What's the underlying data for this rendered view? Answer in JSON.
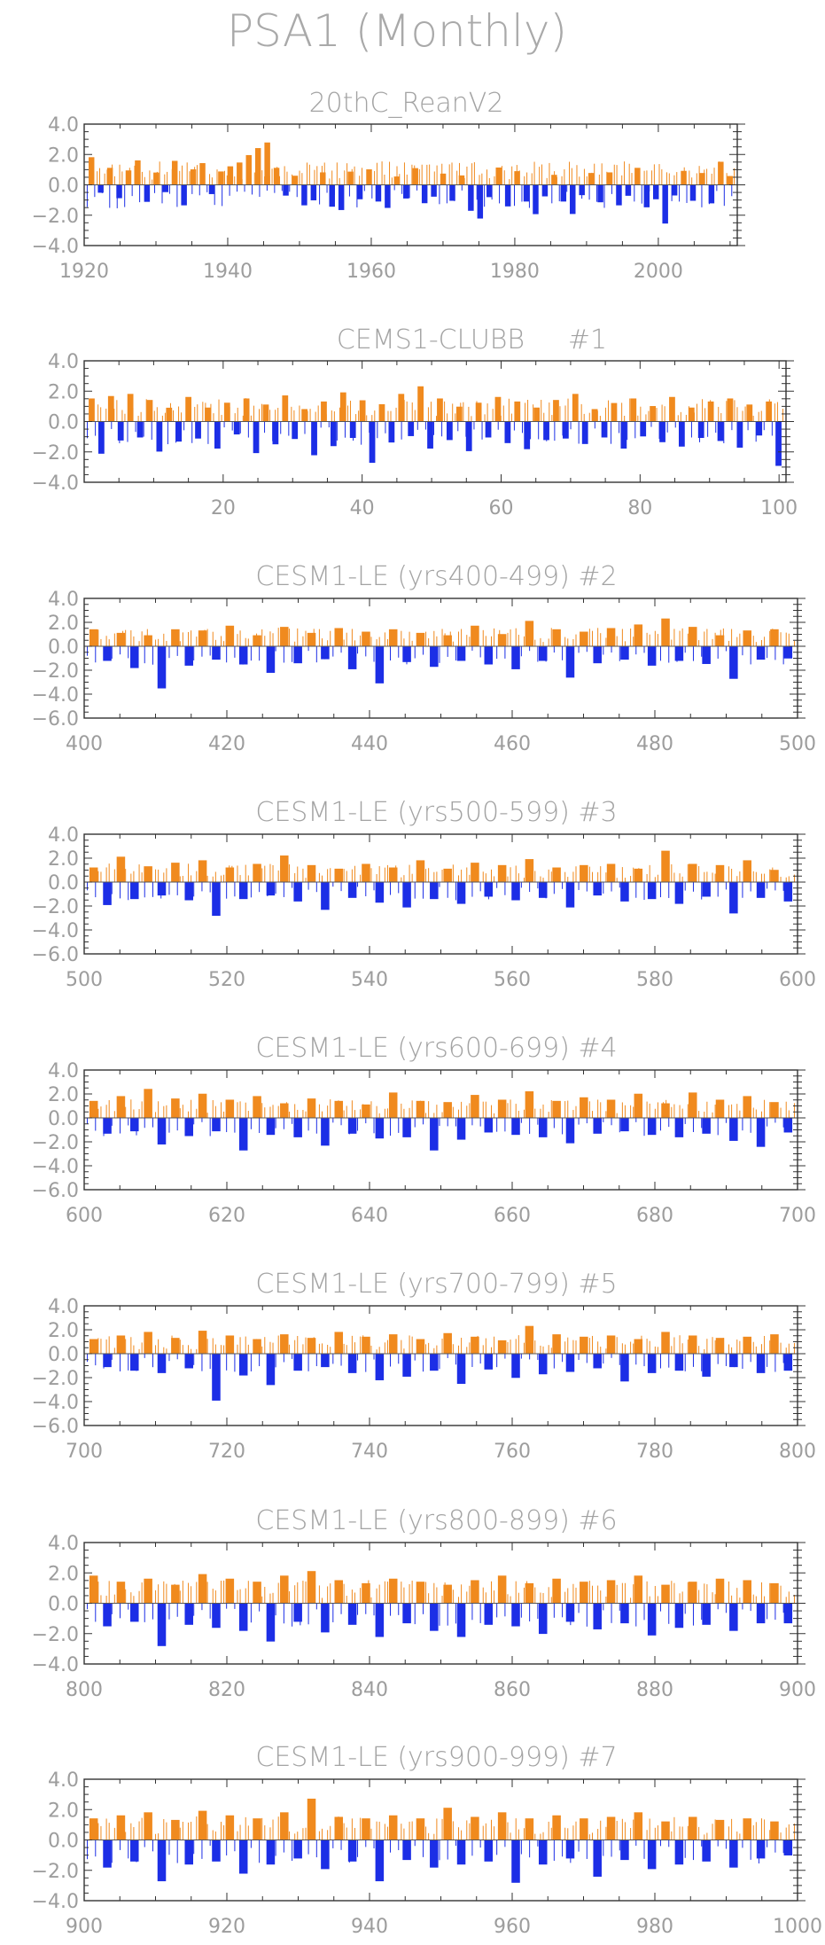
{
  "figure_title": "PSA1 (Monthly)",
  "colors": {
    "positive": "#f08a1e",
    "negative": "#1c2ee6",
    "frame": "#333333",
    "text": "#a3a3a3"
  },
  "chart_data": [
    {
      "type": "bar",
      "title": "20thC_ReanV2",
      "member": "",
      "xlim": [
        1920,
        2011
      ],
      "ylim": [
        -4.0,
        4.0
      ],
      "xticks": [
        "1920",
        "1940",
        "1960",
        "1980",
        "2000"
      ],
      "yticks": [
        "4.0",
        "2.0",
        "0.0",
        "−2.0",
        "−4.0"
      ],
      "series": [
        {
          "name": "",
          "values": [
            1.82,
            -0.52,
            1.12,
            -0.88,
            0.95,
            1.61,
            -1.12,
            0.81,
            -0.48,
            1.58,
            -1.35,
            1.02,
            1.43,
            -0.61,
            0.88,
            1.22,
            1.47,
            1.96,
            2.42,
            2.79,
            1.12,
            -0.71,
            0.6,
            -1.35,
            -1.02,
            0.82,
            -1.44,
            -1.66,
            0.87,
            -0.95,
            1.02,
            -1.1,
            -1.52,
            0.55,
            -0.9,
            1.1,
            -1.21,
            -0.78,
            0.74,
            -1.05,
            0.62,
            -1.71,
            -2.22,
            -0.81,
            1.14,
            -1.42,
            0.9,
            -1.1,
            -1.93,
            -0.76,
            0.66,
            -1.1,
            -1.92,
            -0.68,
            0.78,
            -1.15,
            0.82,
            -1.35,
            -0.72,
            1.12,
            -1.48,
            -0.95,
            -2.55,
            -0.7,
            0.92,
            -1.05,
            0.78,
            -1.22,
            1.52,
            0.58
          ]
        }
      ]
    },
    {
      "type": "bar",
      "title": "CEMS1-CLUBB",
      "member": "#1",
      "xlim": [
        0,
        101
      ],
      "ylim": [
        -4.0,
        4.0
      ],
      "xticks": [
        "20",
        "40",
        "60",
        "80",
        "100"
      ],
      "yticks": [
        "4.0",
        "2.0",
        "0.0",
        "−2.0",
        "−4.0"
      ],
      "series": [
        {
          "name": "",
          "values": [
            1.52,
            -2.12,
            1.68,
            -1.25,
            1.82,
            -1.05,
            1.42,
            -1.98,
            0.91,
            -1.32,
            1.62,
            -1.12,
            0.92,
            -1.78,
            1.24,
            -0.85,
            1.52,
            -2.08,
            1.12,
            -1.5,
            1.72,
            -1.15,
            0.82,
            -2.22,
            1.32,
            -1.62,
            1.92,
            -1.08,
            1.4,
            -2.72,
            1.14,
            -1.38,
            1.82,
            -0.96,
            2.32,
            -1.78,
            1.52,
            -1.22,
            0.98,
            -1.95,
            1.24,
            -1.05,
            1.62,
            -1.42,
            1.32,
            -1.82,
            0.92,
            -1.22,
            1.42,
            -1.12,
            1.82,
            -1.48,
            0.82,
            -1.05,
            1.22,
            -1.78,
            1.52,
            -0.98,
            1.02,
            -1.36,
            1.62,
            -1.65,
            0.92,
            -1.08,
            1.32,
            -1.28,
            1.52,
            -1.72,
            1.12,
            -0.92,
            1.32,
            -2.92
          ]
        }
      ]
    },
    {
      "type": "bar",
      "title": "CESM1-LE (yrs400-499)",
      "member": "#2",
      "xlim": [
        400,
        500
      ],
      "ylim": [
        -6.0,
        4.0
      ],
      "xticks": [
        "400",
        "420",
        "440",
        "460",
        "480",
        "500"
      ],
      "yticks": [
        "4.0",
        "2.0",
        "0.0",
        "−2.0",
        "−4.0",
        "−6.0"
      ],
      "series": [
        {
          "name": "",
          "values": [
            1.42,
            -1.22,
            1.12,
            -1.82,
            0.92,
            -3.52,
            1.42,
            -1.62,
            1.32,
            -1.12,
            1.72,
            -1.52,
            0.92,
            -2.22,
            1.62,
            -1.42,
            1.12,
            -1.08,
            1.52,
            -1.92,
            1.22,
            -3.1,
            1.42,
            -1.32,
            1.12,
            -1.72,
            0.92,
            -1.22,
            1.72,
            -1.52,
            1.02,
            -1.92,
            2.12,
            -1.22,
            1.42,
            -2.62,
            1.22,
            -1.42,
            1.52,
            -1.12,
            1.82,
            -1.62,
            2.32,
            -1.22,
            1.62,
            -1.48,
            0.92,
            -2.72,
            1.32,
            -1.12,
            1.42,
            -1.02
          ]
        }
      ]
    },
    {
      "type": "bar",
      "title": "CESM1-LE (yrs500-599)",
      "member": "#3",
      "xlim": [
        500,
        600
      ],
      "ylim": [
        -6.0,
        4.0
      ],
      "xticks": [
        "500",
        "520",
        "540",
        "560",
        "580",
        "600"
      ],
      "yticks": [
        "4.0",
        "2.0",
        "0.0",
        "−2.0",
        "−4.0",
        "−6.0"
      ],
      "series": [
        {
          "name": "",
          "values": [
            1.22,
            -1.92,
            2.12,
            -1.42,
            1.32,
            -1.12,
            1.62,
            -1.52,
            1.82,
            -2.82,
            1.22,
            -1.42,
            1.52,
            -1.12,
            2.22,
            -1.62,
            1.42,
            -2.32,
            1.12,
            -1.32,
            1.52,
            -1.72,
            1.22,
            -2.12,
            1.82,
            -1.42,
            1.12,
            -1.82,
            1.62,
            -1.22,
            1.42,
            -1.52,
            1.92,
            -1.32,
            1.22,
            -2.12,
            1.42,
            -1.12,
            1.52,
            -1.62,
            1.12,
            -1.42,
            2.62,
            -1.82,
            1.52,
            -1.22,
            1.42,
            -2.62,
            1.82,
            -1.32,
            1.02,
            -1.62
          ]
        }
      ]
    },
    {
      "type": "bar",
      "title": "CESM1-LE (yrs600-699)",
      "member": "#4",
      "xlim": [
        600,
        700
      ],
      "ylim": [
        -6.0,
        4.0
      ],
      "xticks": [
        "600",
        "620",
        "640",
        "660",
        "680",
        "700"
      ],
      "yticks": [
        "4.0",
        "2.0",
        "0.0",
        "−2.0",
        "−4.0",
        "−6.0"
      ],
      "series": [
        {
          "name": "",
          "values": [
            1.42,
            -1.32,
            1.82,
            -1.12,
            2.42,
            -2.22,
            1.62,
            -1.52,
            2.02,
            -1.12,
            1.52,
            -2.72,
            1.82,
            -1.42,
            1.22,
            -1.62,
            1.62,
            -2.32,
            1.42,
            -1.32,
            1.12,
            -1.72,
            2.12,
            -1.62,
            1.42,
            -2.72,
            1.32,
            -1.82,
            1.92,
            -1.22,
            1.52,
            -1.42,
            2.22,
            -1.62,
            1.42,
            -2.12,
            1.72,
            -1.32,
            1.52,
            -1.12,
            2.02,
            -1.42,
            1.22,
            -1.62,
            2.12,
            -1.32,
            1.52,
            -1.92,
            1.82,
            -2.42,
            1.32,
            -1.22
          ]
        }
      ]
    },
    {
      "type": "bar",
      "title": "CESM1-LE (yrs700-799)",
      "member": "#5",
      "xlim": [
        700,
        800
      ],
      "ylim": [
        -6.0,
        4.0
      ],
      "xticks": [
        "700",
        "720",
        "740",
        "760",
        "780",
        "800"
      ],
      "yticks": [
        "4.0",
        "2.0",
        "0.0",
        "−2.0",
        "−4.0",
        "−6.0"
      ],
      "series": [
        {
          "name": "",
          "values": [
            1.22,
            -1.12,
            1.52,
            -1.42,
            1.82,
            -1.62,
            1.32,
            -1.22,
            1.92,
            -3.92,
            1.52,
            -1.82,
            1.22,
            -2.62,
            1.62,
            -1.42,
            1.32,
            -1.12,
            1.82,
            -1.62,
            1.42,
            -2.22,
            1.62,
            -1.92,
            1.22,
            -1.42,
            1.72,
            -2.52,
            1.42,
            -1.32,
            1.12,
            -2.02,
            2.32,
            -1.72,
            1.62,
            -1.52,
            1.42,
            -1.22,
            1.52,
            -2.32,
            1.22,
            -1.62,
            1.82,
            -1.42,
            1.52,
            -1.92,
            1.32,
            -1.12,
            1.42,
            -1.62,
            1.62,
            -1.42
          ]
        }
      ]
    },
    {
      "type": "bar",
      "title": "CESM1-LE (yrs800-899)",
      "member": "#6",
      "xlim": [
        800,
        900
      ],
      "ylim": [
        -4.0,
        4.0
      ],
      "xticks": [
        "800",
        "820",
        "840",
        "860",
        "880",
        "900"
      ],
      "yticks": [
        "4.0",
        "2.0",
        "0.0",
        "−2.0",
        "−4.0"
      ],
      "series": [
        {
          "name": "",
          "values": [
            1.82,
            -1.52,
            1.42,
            -1.22,
            1.62,
            -2.82,
            1.22,
            -1.42,
            1.92,
            -1.62,
            1.62,
            -1.82,
            1.42,
            -2.52,
            1.82,
            -1.22,
            2.12,
            -1.92,
            1.52,
            -1.42,
            1.32,
            -2.22,
            1.62,
            -1.32,
            1.42,
            -1.82,
            1.22,
            -2.22,
            1.52,
            -1.42,
            1.82,
            -1.52,
            1.32,
            -2.02,
            1.62,
            -1.22,
            1.42,
            -1.72,
            1.52,
            -1.32,
            1.82,
            -2.12,
            1.22,
            -1.62,
            1.42,
            -1.42,
            1.62,
            -1.82,
            1.52,
            -1.32,
            1.32,
            -1.32
          ]
        }
      ]
    },
    {
      "type": "bar",
      "title": "CESM1-LE (yrs900-999)",
      "member": "#7",
      "xlim": [
        900,
        1000
      ],
      "ylim": [
        -4.0,
        4.0
      ],
      "xticks": [
        "900",
        "920",
        "940",
        "960",
        "980",
        "1000"
      ],
      "yticks": [
        "4.0",
        "2.0",
        "0.0",
        "−2.0",
        "−4.0"
      ],
      "series": [
        {
          "name": "",
          "values": [
            1.42,
            -1.82,
            1.62,
            -1.42,
            1.82,
            -2.72,
            1.32,
            -1.62,
            1.92,
            -1.42,
            1.62,
            -2.22,
            1.42,
            -1.62,
            1.82,
            -1.22,
            2.72,
            -1.92,
            1.52,
            -1.42,
            1.42,
            -2.72,
            1.62,
            -1.32,
            1.42,
            -1.82,
            2.12,
            -1.62,
            1.52,
            -1.42,
            1.82,
            -2.82,
            1.42,
            -1.62,
            1.62,
            -1.22,
            1.42,
            -2.42,
            1.52,
            -1.32,
            1.82,
            -1.92,
            1.22,
            -1.62,
            1.52,
            -1.42,
            1.32,
            -1.82,
            1.42,
            -1.22,
            1.22,
            -1.02
          ]
        }
      ]
    }
  ]
}
